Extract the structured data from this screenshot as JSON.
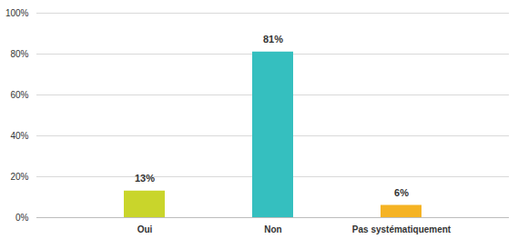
{
  "chart_data": {
    "type": "bar",
    "categories": [
      "Oui",
      "Non",
      "Pas systématiquement"
    ],
    "values": [
      13,
      81,
      6
    ],
    "value_labels": [
      "13%",
      "81%",
      "6%"
    ],
    "colors": [
      "#c9d52b",
      "#35bfbf",
      "#f5b324"
    ],
    "ylim": [
      0,
      100
    ],
    "yticks": [
      {
        "value": 0,
        "label": "0%"
      },
      {
        "value": 20,
        "label": "20%"
      },
      {
        "value": 40,
        "label": "40%"
      },
      {
        "value": 60,
        "label": "60%"
      },
      {
        "value": 80,
        "label": "80%"
      },
      {
        "value": 100,
        "label": "100%"
      }
    ],
    "grid": true,
    "data_labels": true
  }
}
